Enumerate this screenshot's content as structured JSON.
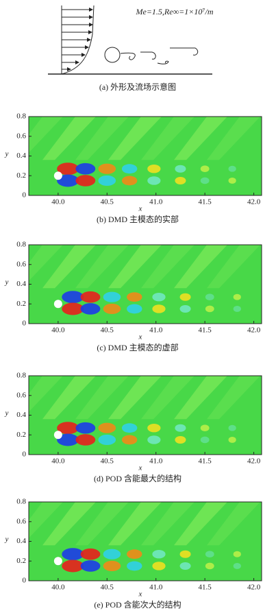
{
  "figure_a": {
    "flow_label": "Me=1.5,Re∞=1×10⁷/m",
    "caption": "(a) 外形及流场示意图"
  },
  "chart_data": [
    {
      "type": "contour",
      "caption": "(b) DMD 主模态的实部",
      "xlabel": "x",
      "ylabel": "y",
      "xlim": [
        39.7,
        42.08
      ],
      "ylim": [
        0,
        0.8
      ],
      "xticks": [
        {
          "value": 40,
          "label": "40.0"
        },
        40.5,
        {
          "value": 41,
          "label": "41.0"
        },
        41.5,
        {
          "value": 42,
          "label": "42.0"
        }
      ],
      "yticks": [
        0,
        0.2,
        0.4,
        0.6,
        0.8
      ]
    },
    {
      "type": "contour",
      "caption": "(c) DMD 主模态的虚部",
      "xlabel": "x",
      "ylabel": "y",
      "xlim": [
        39.7,
        42.08
      ],
      "ylim": [
        0,
        0.8
      ],
      "xticks": [
        {
          "value": 40,
          "label": "40.0"
        },
        40.5,
        {
          "value": 41,
          "label": "41.0"
        },
        41.5,
        {
          "value": 42,
          "label": "42.0"
        }
      ],
      "yticks": [
        0,
        0.2,
        0.4,
        0.6,
        0.8
      ]
    },
    {
      "type": "contour",
      "caption": "(d) POD 含能最大的结构",
      "xlabel": "x",
      "ylabel": "y",
      "xlim": [
        39.7,
        42.08
      ],
      "ylim": [
        0,
        0.8
      ],
      "xticks": [
        {
          "value": 40,
          "label": "40.0"
        },
        40.5,
        {
          "value": 41,
          "label": "41.0"
        },
        41.5,
        {
          "value": 42,
          "label": "42.0"
        }
      ],
      "yticks": [
        0,
        0.2,
        0.4,
        0.6,
        0.8
      ]
    },
    {
      "type": "contour",
      "caption": "(e) POD 含能次大的结构",
      "xlabel": "x",
      "ylabel": "y",
      "xlim": [
        39.7,
        42.08
      ],
      "ylim": [
        0,
        0.8
      ],
      "xticks": [
        {
          "value": 40,
          "label": "40.0"
        },
        40.5,
        {
          "value": 41,
          "label": "41.0"
        },
        41.5,
        {
          "value": 42,
          "label": "42.0"
        }
      ],
      "yticks": [
        0,
        0.2,
        0.4,
        0.6,
        0.8
      ]
    }
  ]
}
